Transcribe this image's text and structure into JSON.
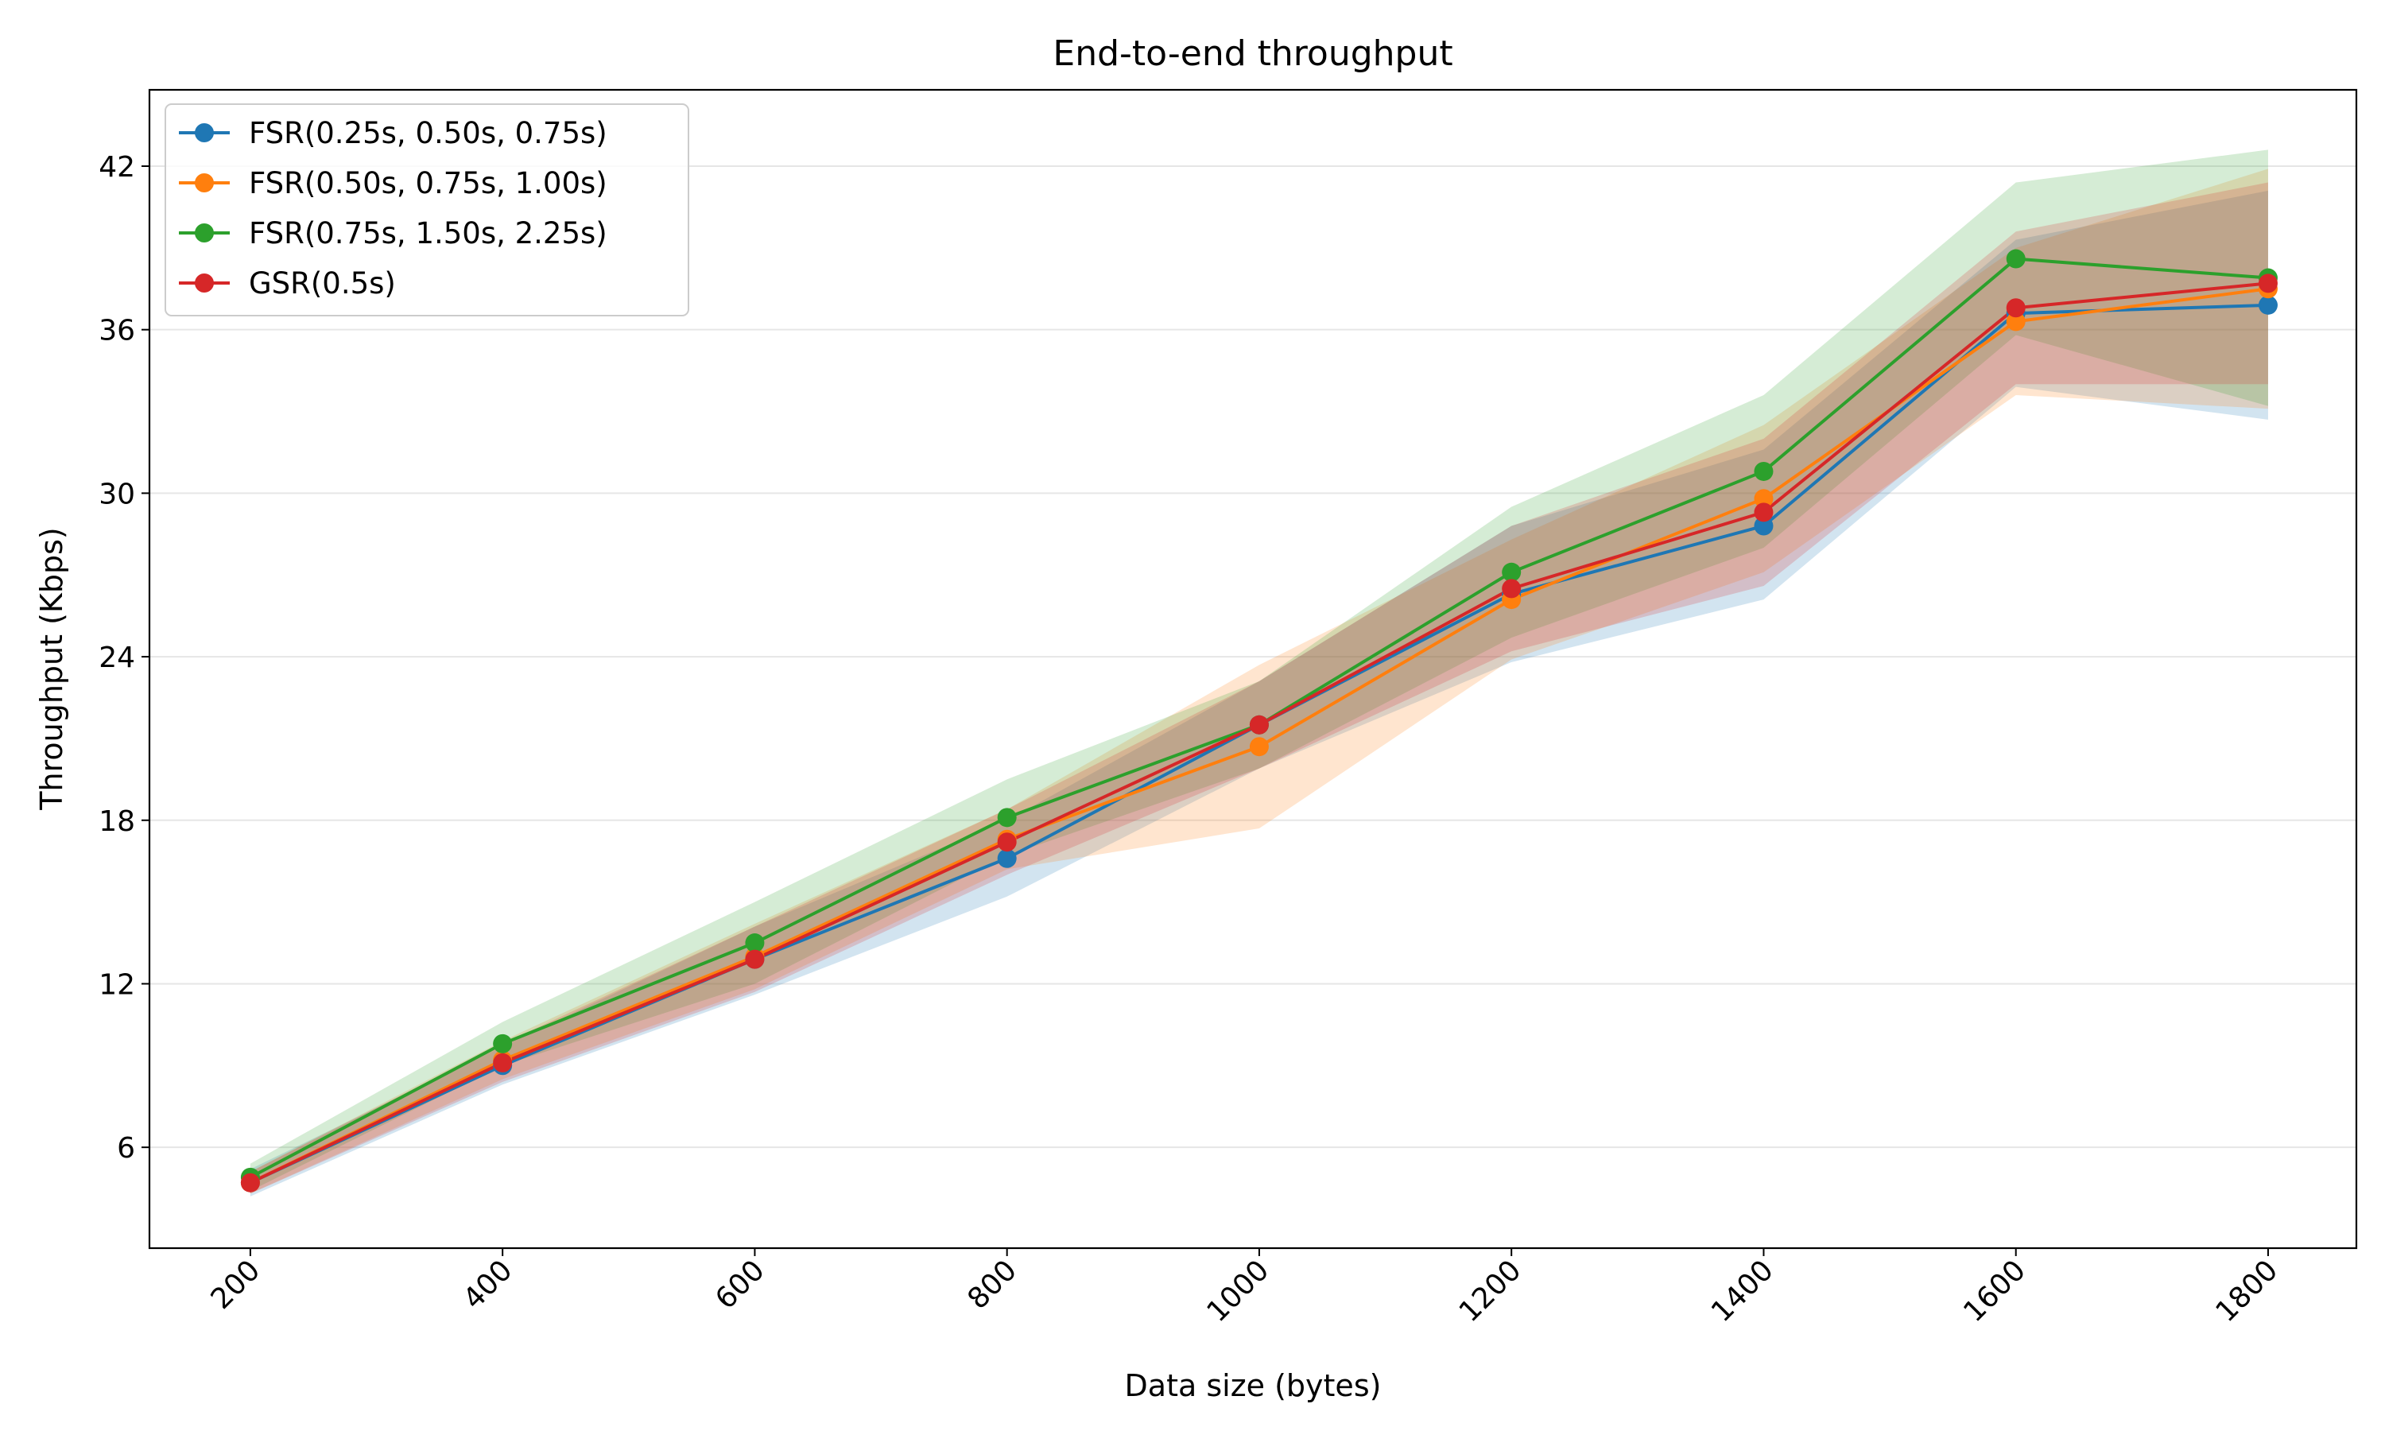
{
  "chart_data": {
    "type": "line",
    "title": "End-to-end throughput",
    "xlabel": "Data size (bytes)",
    "ylabel": "Throughput (Kbps)",
    "x": [
      200,
      400,
      600,
      800,
      1000,
      1200,
      1400,
      1600,
      1800
    ],
    "x_ticks": [
      "200",
      "400",
      "600",
      "800",
      "1000",
      "1200",
      "1400",
      "1600",
      "1800"
    ],
    "y_ticks": [
      "6",
      "12",
      "18",
      "24",
      "30",
      "36",
      "42"
    ],
    "xlim": [
      120,
      1870
    ],
    "ylim": [
      2.3,
      44.8
    ],
    "grid": "horizontal",
    "legend_position": "upper-left",
    "series": [
      {
        "name": "FSR(0.25s, 0.50s, 0.75s)",
        "color": "#1f77b4",
        "values": [
          4.7,
          9.0,
          12.9,
          16.6,
          21.5,
          26.3,
          28.8,
          36.6,
          36.9
        ],
        "lower": [
          4.2,
          8.3,
          11.6,
          15.2,
          19.9,
          23.8,
          26.1,
          33.9,
          32.7
        ],
        "upper": [
          5.2,
          9.7,
          14.1,
          18.0,
          23.1,
          28.8,
          31.6,
          39.3,
          41.1
        ]
      },
      {
        "name": "FSR(0.50s, 0.75s, 1.00s)",
        "color": "#ff7f0e",
        "values": [
          4.7,
          9.2,
          13.0,
          17.3,
          20.7,
          26.1,
          29.8,
          36.3,
          37.5
        ],
        "lower": [
          4.3,
          8.5,
          11.8,
          16.2,
          17.7,
          23.9,
          27.1,
          33.6,
          33.1
        ],
        "upper": [
          5.1,
          9.9,
          14.2,
          18.4,
          23.7,
          28.3,
          32.5,
          39.0,
          41.9
        ]
      },
      {
        "name": "FSR(0.75s, 1.50s, 2.25s)",
        "color": "#2ca02c",
        "values": [
          4.9,
          9.8,
          13.5,
          18.1,
          21.5,
          27.1,
          30.8,
          38.6,
          37.9
        ],
        "lower": [
          4.4,
          9.0,
          12.0,
          16.7,
          19.9,
          24.7,
          28.0,
          35.8,
          33.2
        ],
        "upper": [
          5.4,
          10.6,
          15.0,
          19.5,
          23.1,
          29.5,
          33.6,
          41.4,
          42.6
        ]
      },
      {
        "name": "GSR(0.5s)",
        "color": "#d62728",
        "values": [
          4.7,
          9.1,
          12.9,
          17.2,
          21.5,
          26.5,
          29.3,
          36.8,
          37.7
        ],
        "lower": [
          4.3,
          8.4,
          11.7,
          16.0,
          19.9,
          24.2,
          26.6,
          34.0,
          34.0
        ],
        "upper": [
          5.1,
          9.8,
          14.1,
          18.4,
          23.1,
          28.8,
          32.0,
          39.6,
          41.4
        ]
      }
    ]
  }
}
